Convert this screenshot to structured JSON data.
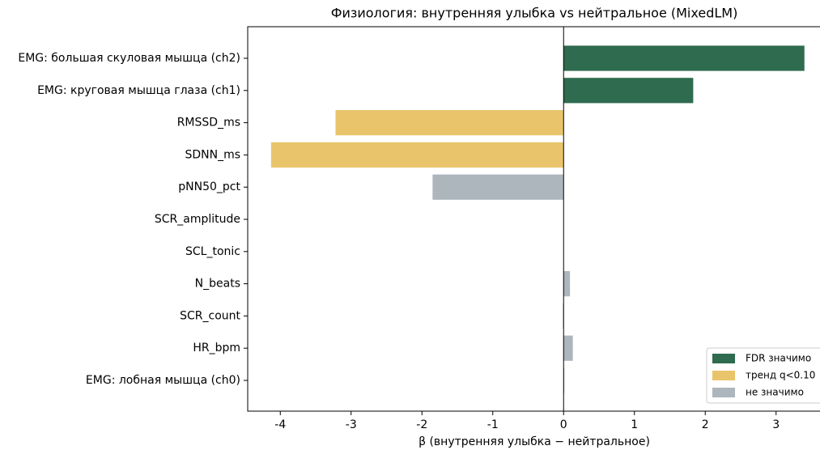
{
  "chart_data": {
    "type": "barh",
    "title": "Физиология: внутренняя улыбка vs нейтральное (MixedLM)",
    "x_label": "β (внутренняя улыбка − нейтральное)",
    "categories": [
      "EMG: большая скуловая мышца (ch2)",
      "EMG: круговая мышца глаза (ch1)",
      "RMSSD_ms",
      "SDNN_ms",
      "pNN50_pct",
      "SCR_amplitude",
      "SCL_tonic",
      "N_beats",
      "SCR_count",
      "HR_bpm",
      "EMG: лобная мышца (ch0)"
    ],
    "series": [
      {
        "name": "FDR значимо",
        "color": "#2e6b4f",
        "values": [
          3.4,
          1.83,
          null,
          null,
          null,
          null,
          null,
          null,
          null,
          null,
          null
        ]
      },
      {
        "name": "тренд q<0.10",
        "color": "#e9c46a",
        "values": [
          null,
          null,
          -3.22,
          -4.13,
          null,
          null,
          null,
          null,
          null,
          null,
          null
        ]
      },
      {
        "name": "не значимо",
        "color": "#adb5bd",
        "values": [
          null,
          null,
          null,
          null,
          -1.85,
          0,
          0,
          0.09,
          -0.01,
          0.13,
          0.01
        ]
      }
    ],
    "xlim": [
      -4.46,
      3.62
    ],
    "xticks": [
      -4,
      -3,
      -2,
      -1,
      0,
      1,
      2,
      3
    ],
    "legend": "lower right"
  }
}
